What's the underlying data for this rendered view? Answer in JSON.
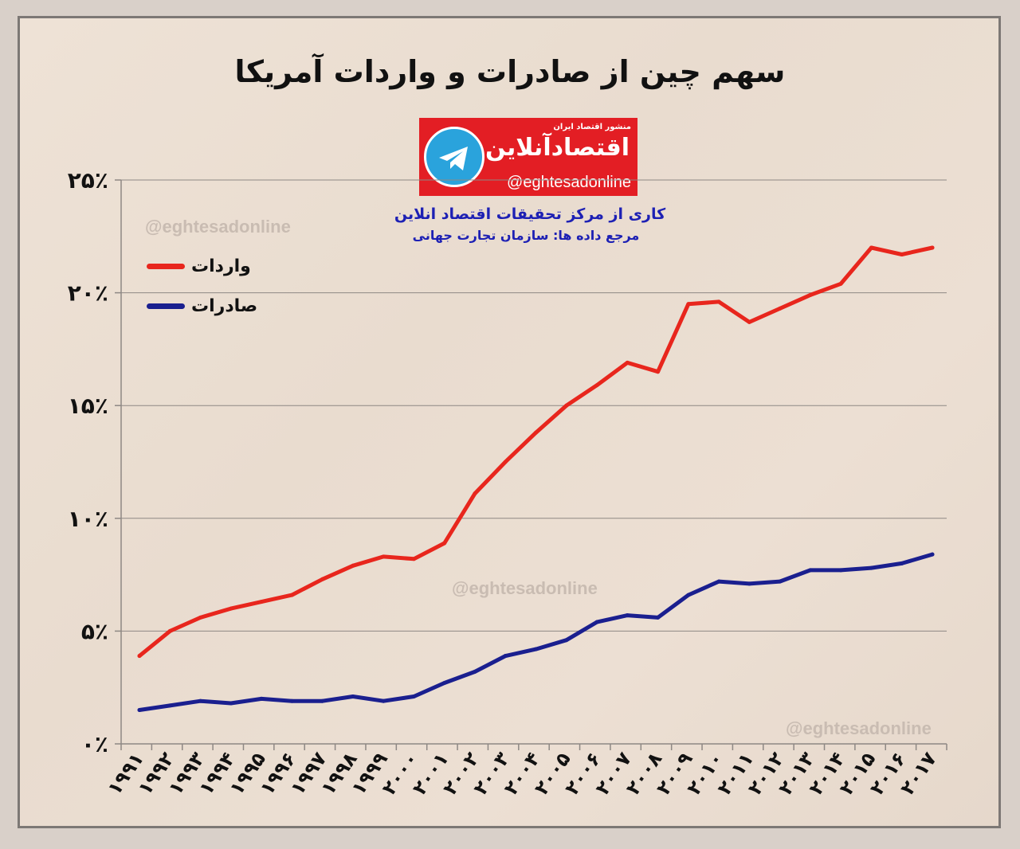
{
  "title": "سهم چین از صادرات و واردات آمریکا",
  "logo": {
    "icon": "telegram-icon",
    "tagline": "منشور اقتصاد ایران",
    "brand": "اقتصادآنلاین",
    "handle": "@eghtesadonline"
  },
  "credit_line": "کاری از مرکز تحقیقات اقتصاد انلاین",
  "source_line": "مرجع داده ها: سازمان تجارت جهانی",
  "watermarks": [
    "@eghtesadonline",
    "@eghtesadonline",
    "@eghtesadonline"
  ],
  "colors": {
    "imports": "#e8261d",
    "exports": "#1a1f8f",
    "grid": "#8e8884",
    "axis": "#8e8884"
  },
  "chart_data": {
    "type": "line",
    "title": "سهم چین از صادرات و واردات آمریکا",
    "x": [
      1991,
      1992,
      1993,
      1994,
      1995,
      1996,
      1997,
      1998,
      1999,
      2000,
      2001,
      2002,
      2003,
      2004,
      2005,
      2006,
      2007,
      2008,
      2009,
      2010,
      2011,
      2012,
      2013,
      2014,
      2015,
      2016,
      2017
    ],
    "x_tick_labels": [
      "۱۹۹۱",
      "۱۹۹۲",
      "۱۹۹۳",
      "۱۹۹۴",
      "۱۹۹۵",
      "۱۹۹۶",
      "۱۹۹۷",
      "۱۹۹۸",
      "۱۹۹۹",
      "۲۰۰۰",
      "۲۰۰۱",
      "۲۰۰۲",
      "۲۰۰۳",
      "۲۰۰۴",
      "۲۰۰۵",
      "۲۰۰۶",
      "۲۰۰۷",
      "۲۰۰۸",
      "۲۰۰۹",
      "۲۰۱۰",
      "۲۰۱۱",
      "۲۰۱۲",
      "۲۰۱۳",
      "۲۰۱۴",
      "۲۰۱۵",
      "۲۰۱۶",
      "۲۰۱۷"
    ],
    "y_ticks": [
      0,
      5,
      10,
      15,
      20,
      25
    ],
    "y_tick_labels": [
      "۰٪",
      "۵٪",
      "۱۰٪",
      "۱۵٪",
      "۲۰٪",
      "۲۵٪"
    ],
    "ylim": [
      0,
      25
    ],
    "grid": true,
    "legend_position": "top-left",
    "series": [
      {
        "name": "واردات",
        "values": [
          3.9,
          5.0,
          5.6,
          6.0,
          6.3,
          6.6,
          7.3,
          7.9,
          8.3,
          8.2,
          8.9,
          11.1,
          12.5,
          13.8,
          15.0,
          15.9,
          16.9,
          16.5,
          19.5,
          19.6,
          18.7,
          19.3,
          19.9,
          20.4,
          22.0,
          21.7,
          22.0
        ]
      },
      {
        "name": "صادرات",
        "values": [
          1.5,
          1.7,
          1.9,
          1.8,
          2.0,
          1.9,
          1.9,
          2.1,
          1.9,
          2.1,
          2.7,
          3.2,
          3.9,
          4.2,
          4.6,
          5.4,
          5.7,
          5.6,
          6.6,
          7.2,
          7.1,
          7.2,
          7.7,
          7.7,
          7.8,
          8.0,
          8.4
        ]
      }
    ]
  }
}
